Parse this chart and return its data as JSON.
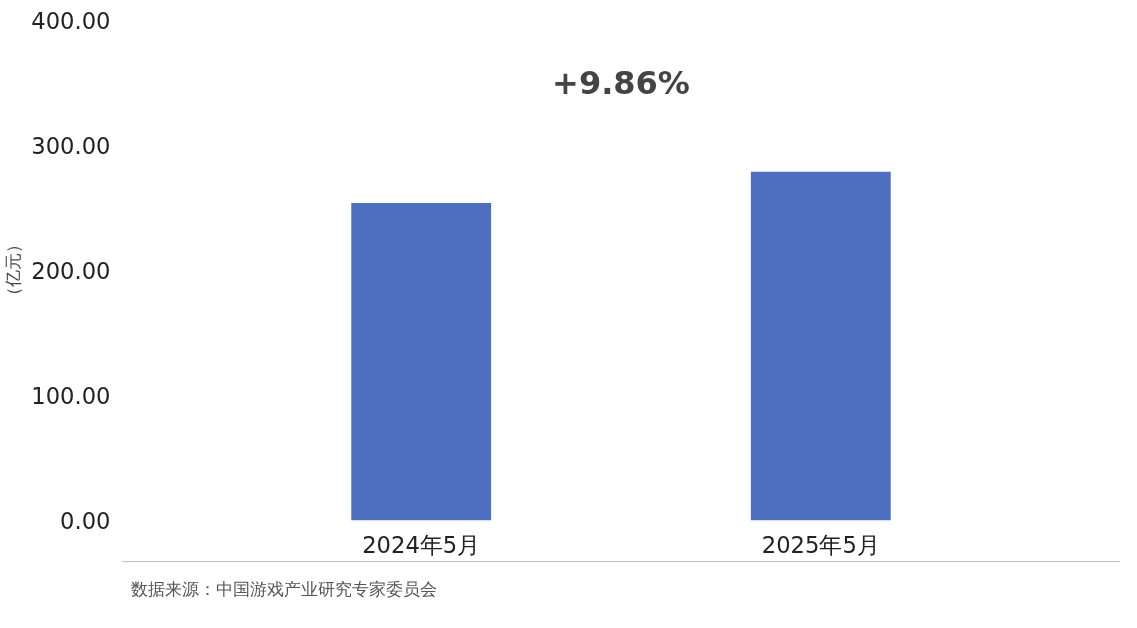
{
  "chart_data": {
    "type": "bar",
    "categories": [
      "2024年5月",
      "2025年5月"
    ],
    "values": [
      254,
      279
    ],
    "color": "#4e6fbf",
    "ylim": [
      0,
      400
    ],
    "yticks": [
      {
        "value": 0,
        "label": "0.00"
      },
      {
        "value": 100,
        "label": "100.00"
      },
      {
        "value": 200,
        "label": "200.00"
      },
      {
        "value": 300,
        "label": "300.00"
      },
      {
        "value": 400,
        "label": "400.00"
      }
    ],
    "ylabel": "（亿元）",
    "grid": false,
    "annotations": [
      "+9.86%",
      "数据来源：中国游戏产业研究专家委员会"
    ]
  }
}
